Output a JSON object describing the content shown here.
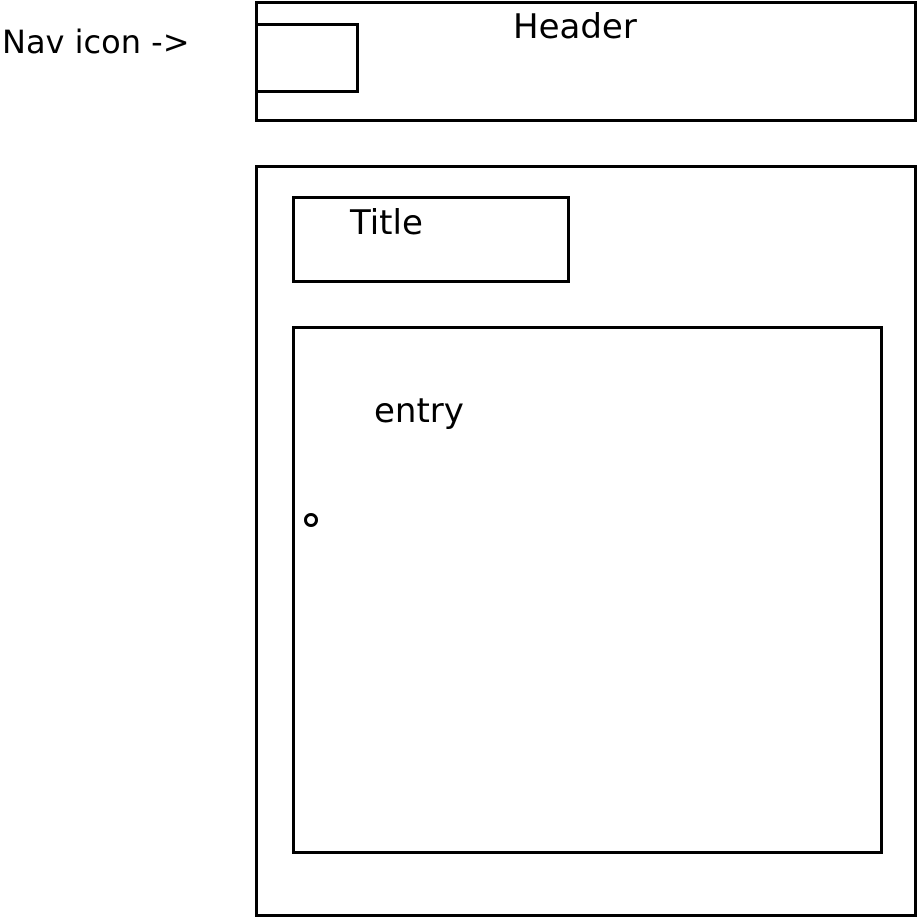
{
  "annotations": {
    "nav_icon": "Nav icon ->"
  },
  "header": {
    "label": "Header"
  },
  "content": {
    "title_label": "Title",
    "entry_label": "entry"
  },
  "colors": {
    "stroke": "#000000",
    "background": "#ffffff"
  }
}
